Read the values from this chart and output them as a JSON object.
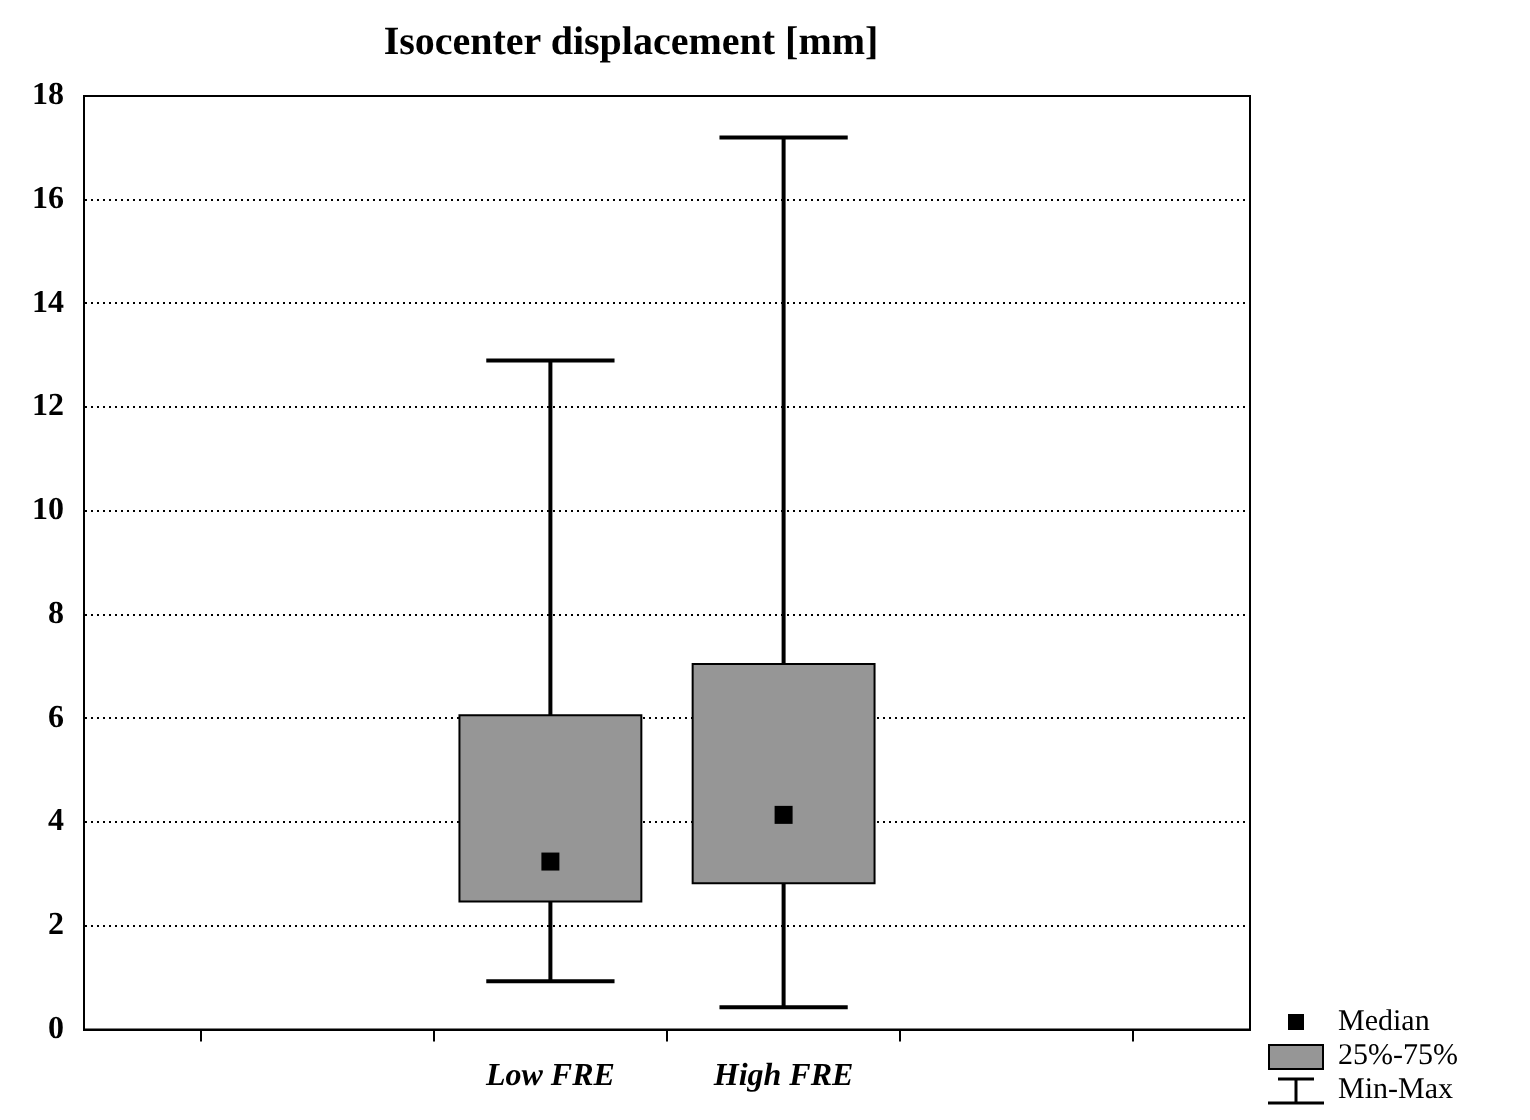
{
  "chart_data": {
    "type": "box",
    "title": "Isocenter displacement [mm]",
    "categories": [
      null,
      null,
      "Low FRE",
      "High FRE",
      null,
      null
    ],
    "boxes": [
      null,
      null,
      {
        "low": 0.93,
        "q1": 2.47,
        "median": 3.24,
        "q3": 6.06,
        "high": 12.9
      },
      {
        "low": 0.43,
        "q1": 2.82,
        "median": 4.14,
        "q3": 7.05,
        "high": 17.2
      },
      null,
      null
    ],
    "color": "#969696",
    "ylim": [
      0,
      18
    ],
    "yticks": [
      0,
      2,
      4,
      6,
      8,
      10,
      12,
      14,
      16,
      18
    ],
    "grid": "y",
    "marker": "square",
    "annotations": [
      "Median",
      "25%-75%",
      "Min-Max"
    ]
  }
}
